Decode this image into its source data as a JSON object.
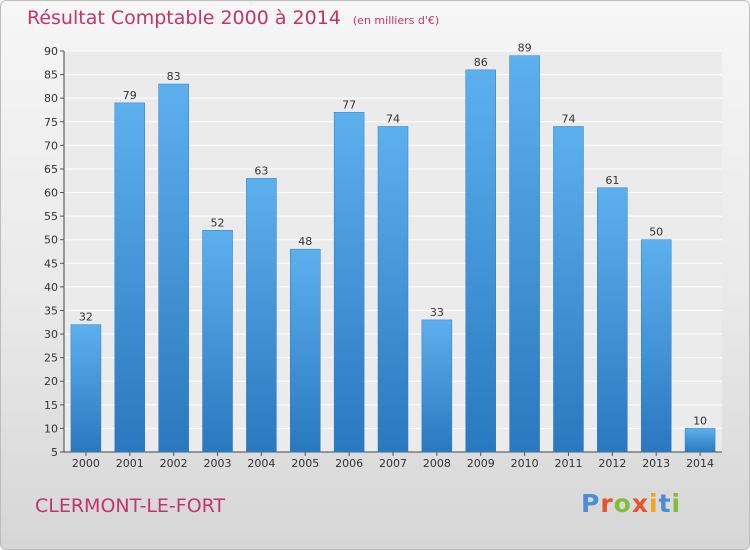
{
  "header": {
    "title": "Résultat Comptable 2000 à 2014",
    "subtitle": "(en milliers d'€)"
  },
  "footer": {
    "commune": "CLERMONT-LE-FORT",
    "logo_text": "Proxiti",
    "logo_colors": [
      "#4a8fd6",
      "#e9532a",
      "#7fbf3a",
      "#e9532a",
      "#f0a51e",
      "#4a8fd6",
      "#7fbf3a"
    ]
  },
  "chart_data": {
    "type": "bar",
    "categories": [
      "2000",
      "2001",
      "2002",
      "2003",
      "2004",
      "2005",
      "2006",
      "2007",
      "2008",
      "2009",
      "2010",
      "2011",
      "2012",
      "2013",
      "2014"
    ],
    "values": [
      32,
      79,
      83,
      52,
      63,
      48,
      77,
      74,
      33,
      86,
      89,
      74,
      61,
      50,
      10
    ],
    "title": "Résultat Comptable 2000 à 2014",
    "ylim": [
      5,
      90
    ],
    "yticks": [
      5,
      10,
      15,
      20,
      25,
      30,
      35,
      40,
      45,
      50,
      55,
      60,
      65,
      70,
      75,
      80,
      85,
      90
    ],
    "grid": true,
    "bar_color": "#3f95da",
    "data_labels": true
  }
}
